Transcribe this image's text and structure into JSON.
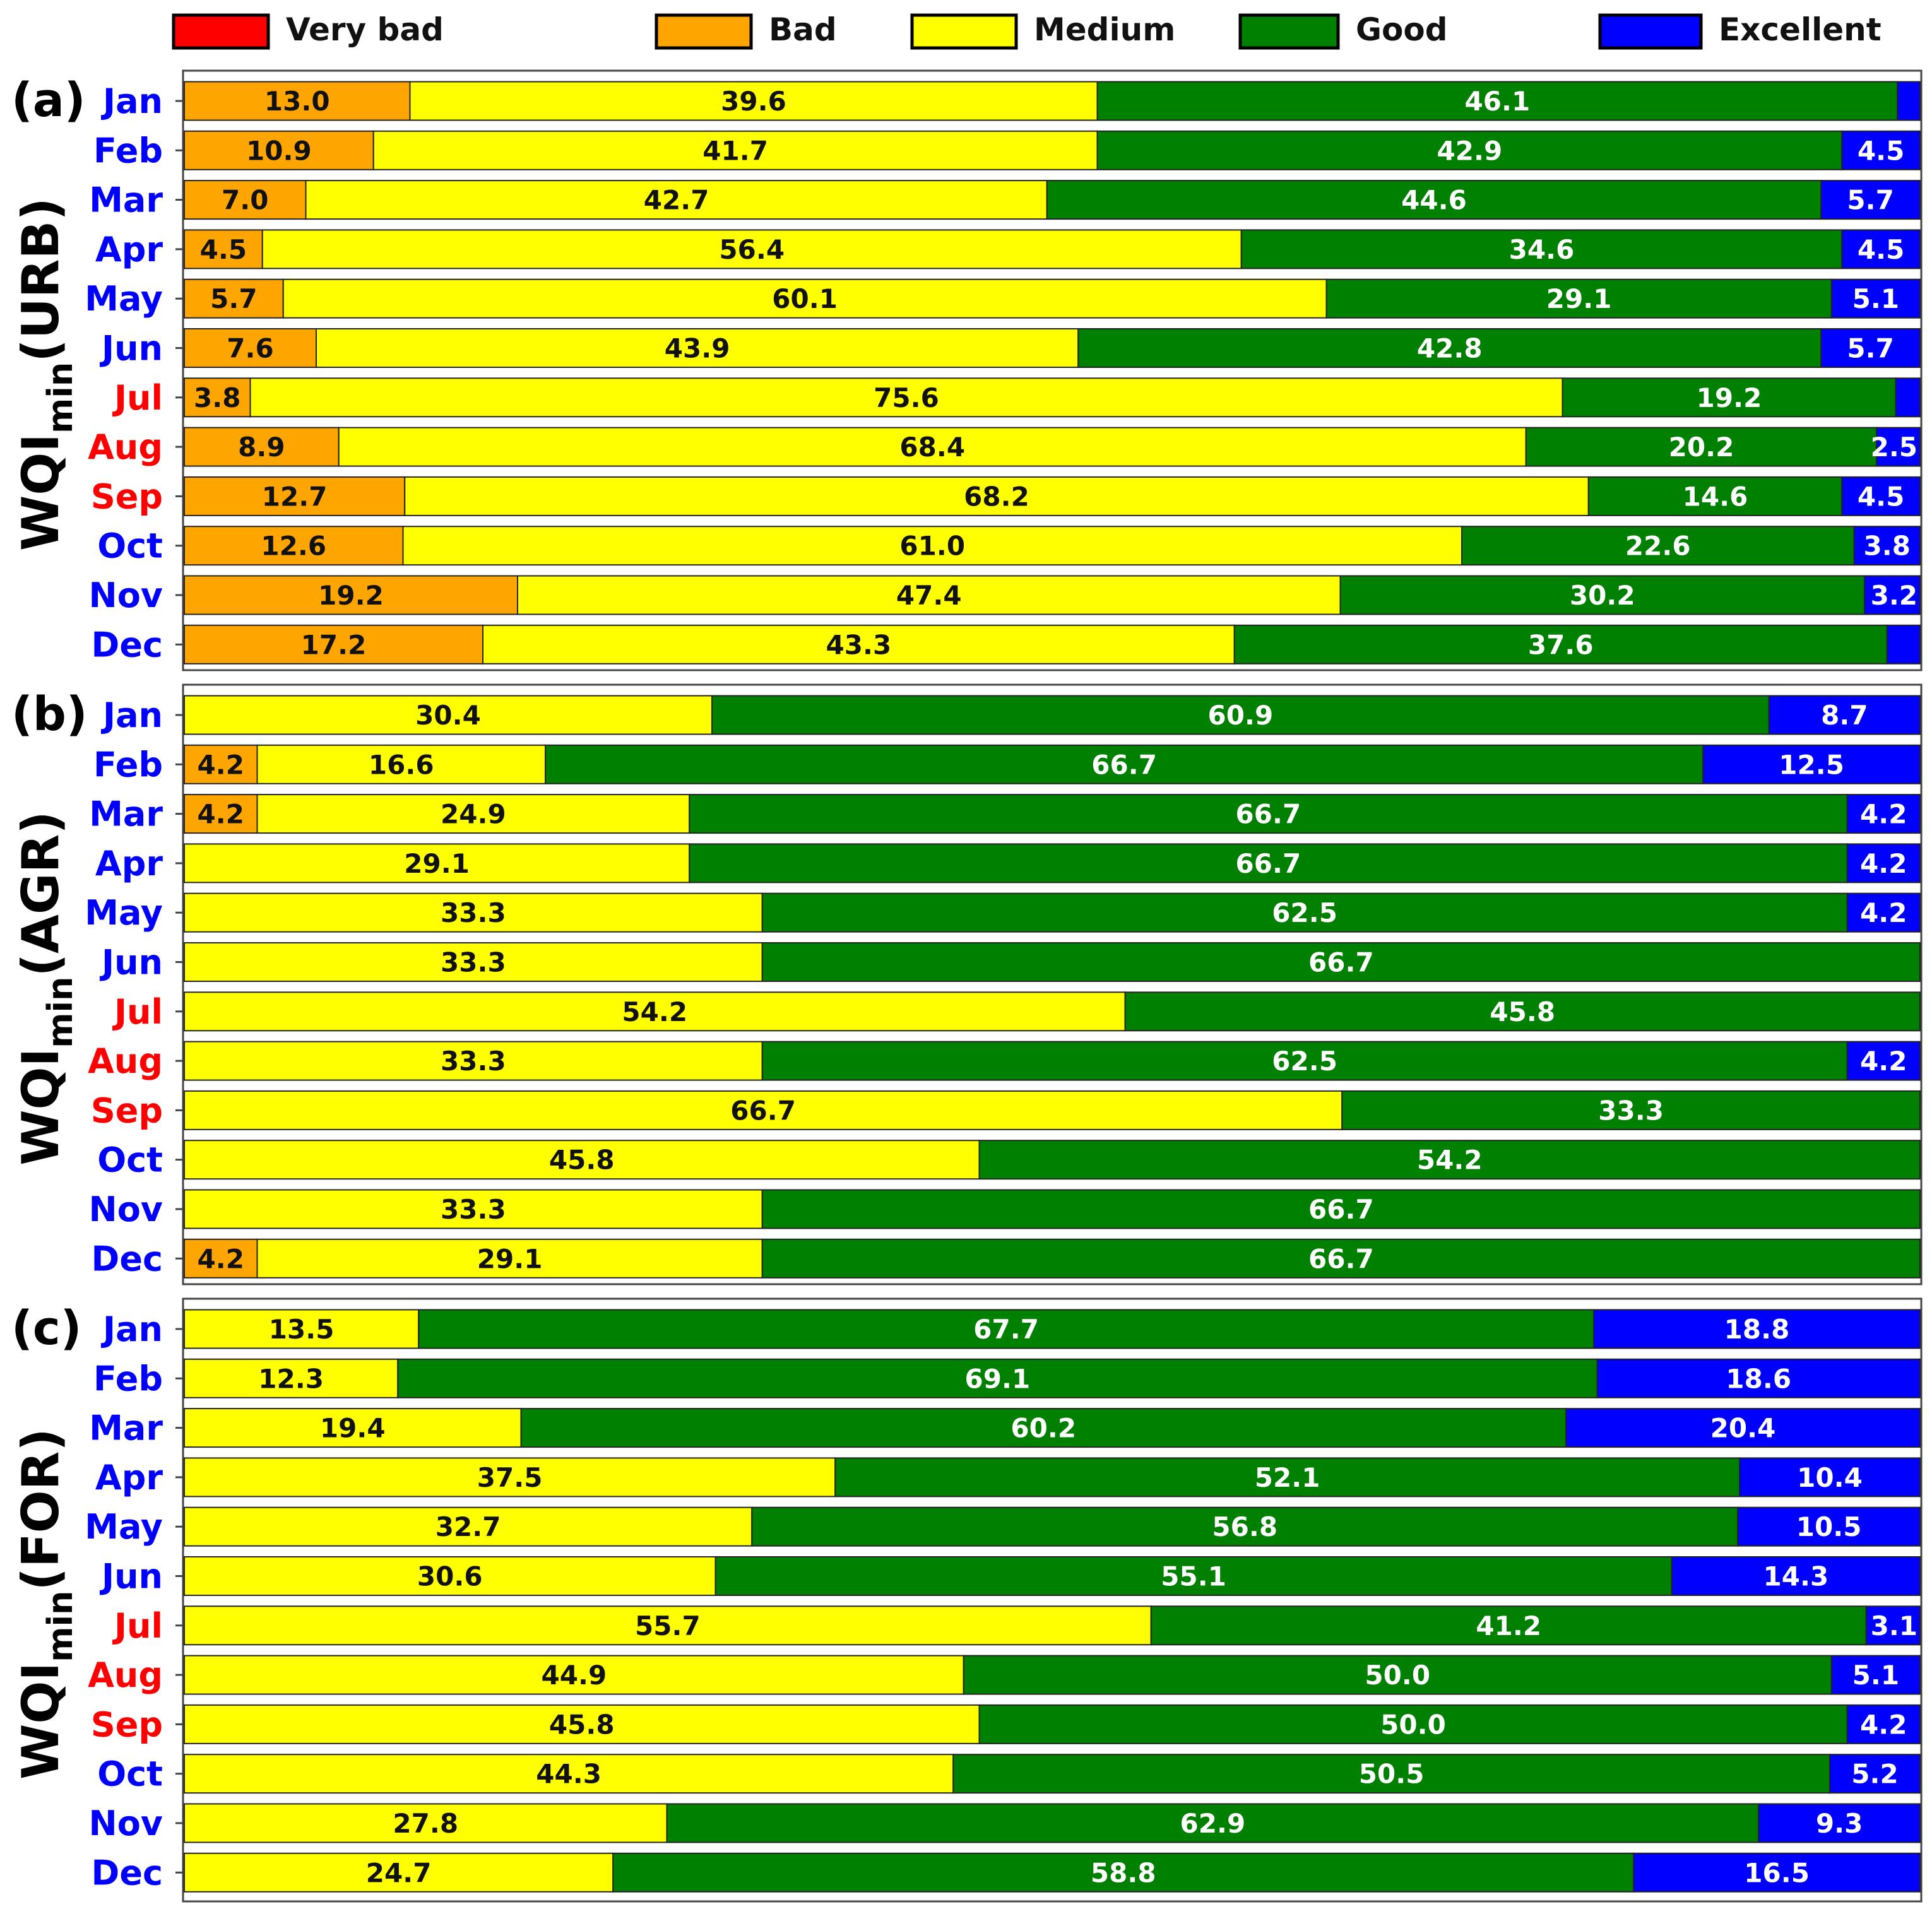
{
  "colors": {
    "very_bad": "#ff0000",
    "bad": "#ffa500",
    "medium": "#ffff00",
    "good": "#008000",
    "excellent": "#0000ff",
    "summer_month": "#ff0000",
    "other_month": "#0000ff"
  },
  "legend": {
    "items": [
      {
        "label": "Very bad",
        "key": "very_bad"
      },
      {
        "label": "Bad",
        "key": "bad"
      },
      {
        "label": "Medium",
        "key": "medium"
      },
      {
        "label": "Good",
        "key": "good"
      },
      {
        "label": "Excellent",
        "key": "excellent"
      }
    ]
  },
  "chart_data": [
    {
      "type": "bar",
      "orientation": "horizontal-stacked",
      "panel_label": "(a)",
      "ylabel": {
        "main": "WQI",
        "sub": "min",
        "suffix": "(URB)"
      },
      "xlim": [
        0,
        100
      ],
      "categories": [
        "Jan",
        "Feb",
        "Mar",
        "Apr",
        "May",
        "Jun",
        "Jul",
        "Aug",
        "Sep",
        "Oct",
        "Nov",
        "Dec"
      ],
      "summer_months": [
        "Jul",
        "Aug",
        "Sep"
      ],
      "series": [
        {
          "name": "Very bad",
          "key": "very_bad",
          "values": [
            0,
            0,
            0,
            0,
            0,
            0,
            0,
            0,
            0,
            0,
            0,
            0
          ]
        },
        {
          "name": "Bad",
          "key": "bad",
          "values": [
            13.0,
            10.9,
            7.0,
            4.5,
            5.7,
            7.6,
            3.8,
            8.9,
            12.7,
            12.6,
            19.2,
            17.2
          ]
        },
        {
          "name": "Medium",
          "key": "medium",
          "values": [
            39.6,
            41.7,
            42.7,
            56.4,
            60.1,
            43.9,
            75.6,
            68.4,
            68.2,
            61.0,
            47.4,
            43.3
          ]
        },
        {
          "name": "Good",
          "key": "good",
          "values": [
            46.1,
            42.9,
            44.6,
            34.6,
            29.1,
            42.8,
            19.2,
            20.2,
            14.6,
            22.6,
            30.2,
            37.6
          ]
        },
        {
          "name": "Excellent",
          "key": "excellent",
          "values": [
            1.3,
            4.5,
            5.7,
            4.5,
            5.1,
            5.7,
            1.4,
            2.5,
            4.5,
            3.8,
            3.2,
            1.9
          ]
        }
      ],
      "data_labels": [
        [
          "13.0",
          "39.6",
          "46.1",
          ""
        ],
        [
          "10.9",
          "41.7",
          "42.9",
          "4.5"
        ],
        [
          "7.0",
          "42.7",
          "44.6",
          "5.7"
        ],
        [
          "4.5",
          "56.4",
          "34.6",
          "4.5"
        ],
        [
          "5.7",
          "60.1",
          "29.1",
          "5.1"
        ],
        [
          "7.6",
          "43.9",
          "42.8",
          "5.7"
        ],
        [
          "3.8",
          "75.6",
          "19.2",
          ""
        ],
        [
          "8.9",
          "68.4",
          "20.2",
          "2.5"
        ],
        [
          "12.7",
          "68.2",
          "14.6",
          "4.5"
        ],
        [
          "12.6",
          "61.0",
          "22.6",
          "3.8"
        ],
        [
          "19.2",
          "47.4",
          "30.2",
          "3.2"
        ],
        [
          "17.2",
          "43.3",
          "37.6",
          ""
        ]
      ]
    },
    {
      "type": "bar",
      "orientation": "horizontal-stacked",
      "panel_label": "(b)",
      "ylabel": {
        "main": "WQI",
        "sub": "min",
        "suffix": "(AGR)"
      },
      "xlim": [
        0,
        100
      ],
      "categories": [
        "Jan",
        "Feb",
        "Mar",
        "Apr",
        "May",
        "Jun",
        "Jul",
        "Aug",
        "Sep",
        "Oct",
        "Nov",
        "Dec"
      ],
      "summer_months": [
        "Jul",
        "Aug",
        "Sep"
      ],
      "series": [
        {
          "name": "Very bad",
          "key": "very_bad",
          "values": [
            0,
            0,
            0,
            0,
            0,
            0,
            0,
            0,
            0,
            0,
            0,
            0
          ]
        },
        {
          "name": "Bad",
          "key": "bad",
          "values": [
            0,
            4.2,
            4.2,
            0,
            0,
            0,
            0,
            0,
            0,
            0,
            0,
            4.2
          ]
        },
        {
          "name": "Medium",
          "key": "medium",
          "values": [
            30.4,
            16.6,
            24.9,
            29.1,
            33.3,
            33.3,
            54.2,
            33.3,
            66.7,
            45.8,
            33.3,
            29.1
          ]
        },
        {
          "name": "Good",
          "key": "good",
          "values": [
            60.9,
            66.7,
            66.7,
            66.7,
            62.5,
            66.7,
            45.8,
            62.5,
            33.3,
            54.2,
            66.7,
            66.7
          ]
        },
        {
          "name": "Excellent",
          "key": "excellent",
          "values": [
            8.7,
            12.5,
            4.2,
            4.2,
            4.2,
            0,
            0,
            4.2,
            0,
            0,
            0,
            0
          ]
        }
      ],
      "data_labels": [
        [
          "",
          "30.4",
          "60.9",
          "8.7"
        ],
        [
          "4.2",
          "16.6",
          "66.7",
          "12.5"
        ],
        [
          "4.2",
          "24.9",
          "66.7",
          "4.2"
        ],
        [
          "",
          "29.1",
          "66.7",
          "4.2"
        ],
        [
          "",
          "33.3",
          "62.5",
          "4.2"
        ],
        [
          "",
          "33.3",
          "66.7",
          ""
        ],
        [
          "",
          "54.2",
          "45.8",
          ""
        ],
        [
          "",
          "33.3",
          "62.5",
          "4.2"
        ],
        [
          "",
          "66.7",
          "33.3",
          ""
        ],
        [
          "",
          "45.8",
          "54.2",
          ""
        ],
        [
          "",
          "33.3",
          "66.7",
          ""
        ],
        [
          "4.2",
          "29.1",
          "66.7",
          ""
        ]
      ]
    },
    {
      "type": "bar",
      "orientation": "horizontal-stacked",
      "panel_label": "(c)",
      "ylabel": {
        "main": "WQI",
        "sub": "min",
        "suffix": "(FOR)"
      },
      "xlim": [
        0,
        100
      ],
      "categories": [
        "Jan",
        "Feb",
        "Mar",
        "Apr",
        "May",
        "Jun",
        "Jul",
        "Aug",
        "Sep",
        "Oct",
        "Nov",
        "Dec"
      ],
      "summer_months": [
        "Jul",
        "Aug",
        "Sep"
      ],
      "series": [
        {
          "name": "Very bad",
          "key": "very_bad",
          "values": [
            0,
            0,
            0,
            0,
            0,
            0,
            0,
            0,
            0,
            0,
            0,
            0
          ]
        },
        {
          "name": "Bad",
          "key": "bad",
          "values": [
            0,
            0,
            0,
            0,
            0,
            0,
            0,
            0,
            0,
            0,
            0,
            0
          ]
        },
        {
          "name": "Medium",
          "key": "medium",
          "values": [
            13.5,
            12.3,
            19.4,
            37.5,
            32.7,
            30.6,
            55.7,
            44.9,
            45.8,
            44.3,
            27.8,
            24.7
          ]
        },
        {
          "name": "Good",
          "key": "good",
          "values": [
            67.7,
            69.1,
            60.2,
            52.1,
            56.8,
            55.1,
            41.2,
            50.0,
            50.0,
            50.5,
            62.9,
            58.8
          ]
        },
        {
          "name": "Excellent",
          "key": "excellent",
          "values": [
            18.8,
            18.6,
            20.4,
            10.4,
            10.5,
            14.3,
            3.1,
            5.1,
            4.2,
            5.2,
            9.3,
            16.5
          ]
        }
      ],
      "data_labels": [
        [
          "",
          "13.5",
          "67.7",
          "18.8"
        ],
        [
          "",
          "12.3",
          "69.1",
          "18.6"
        ],
        [
          "",
          "19.4",
          "60.2",
          "20.4"
        ],
        [
          "",
          "37.5",
          "52.1",
          "10.4"
        ],
        [
          "",
          "32.7",
          "56.8",
          "10.5"
        ],
        [
          "",
          "30.6",
          "55.1",
          "14.3"
        ],
        [
          "",
          "55.7",
          "41.2",
          "3.1"
        ],
        [
          "",
          "44.9",
          "50.0",
          "5.1"
        ],
        [
          "",
          "45.8",
          "50.0",
          "4.2"
        ],
        [
          "",
          "44.3",
          "50.5",
          "5.2"
        ],
        [
          "",
          "27.8",
          "62.9",
          "9.3"
        ],
        [
          "",
          "24.7",
          "58.8",
          "16.5"
        ]
      ]
    }
  ]
}
